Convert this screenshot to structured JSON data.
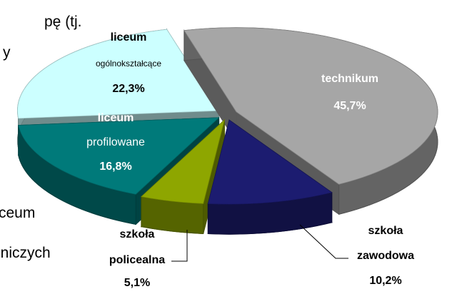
{
  "chart_data": {
    "type": "pie3d",
    "categories": [
      "technikum",
      "szkoła zawodowa",
      "szkoła policealna",
      "liceum profilowane",
      "liceum ogólnokształcące"
    ],
    "values": [
      45.7,
      10.2,
      5.1,
      16.8,
      22.3
    ],
    "value_labels": [
      "45,7%",
      "10,2%",
      "5,1%",
      "16,8%",
      "22,3%"
    ],
    "colors": [
      "#a6a6a6",
      "#1c1c70",
      "#8ea600",
      "#007a7a",
      "#ccffff"
    ]
  },
  "background_text": [
    "pę (tj.",
    "y",
    "ceum",
    "lniczych"
  ]
}
